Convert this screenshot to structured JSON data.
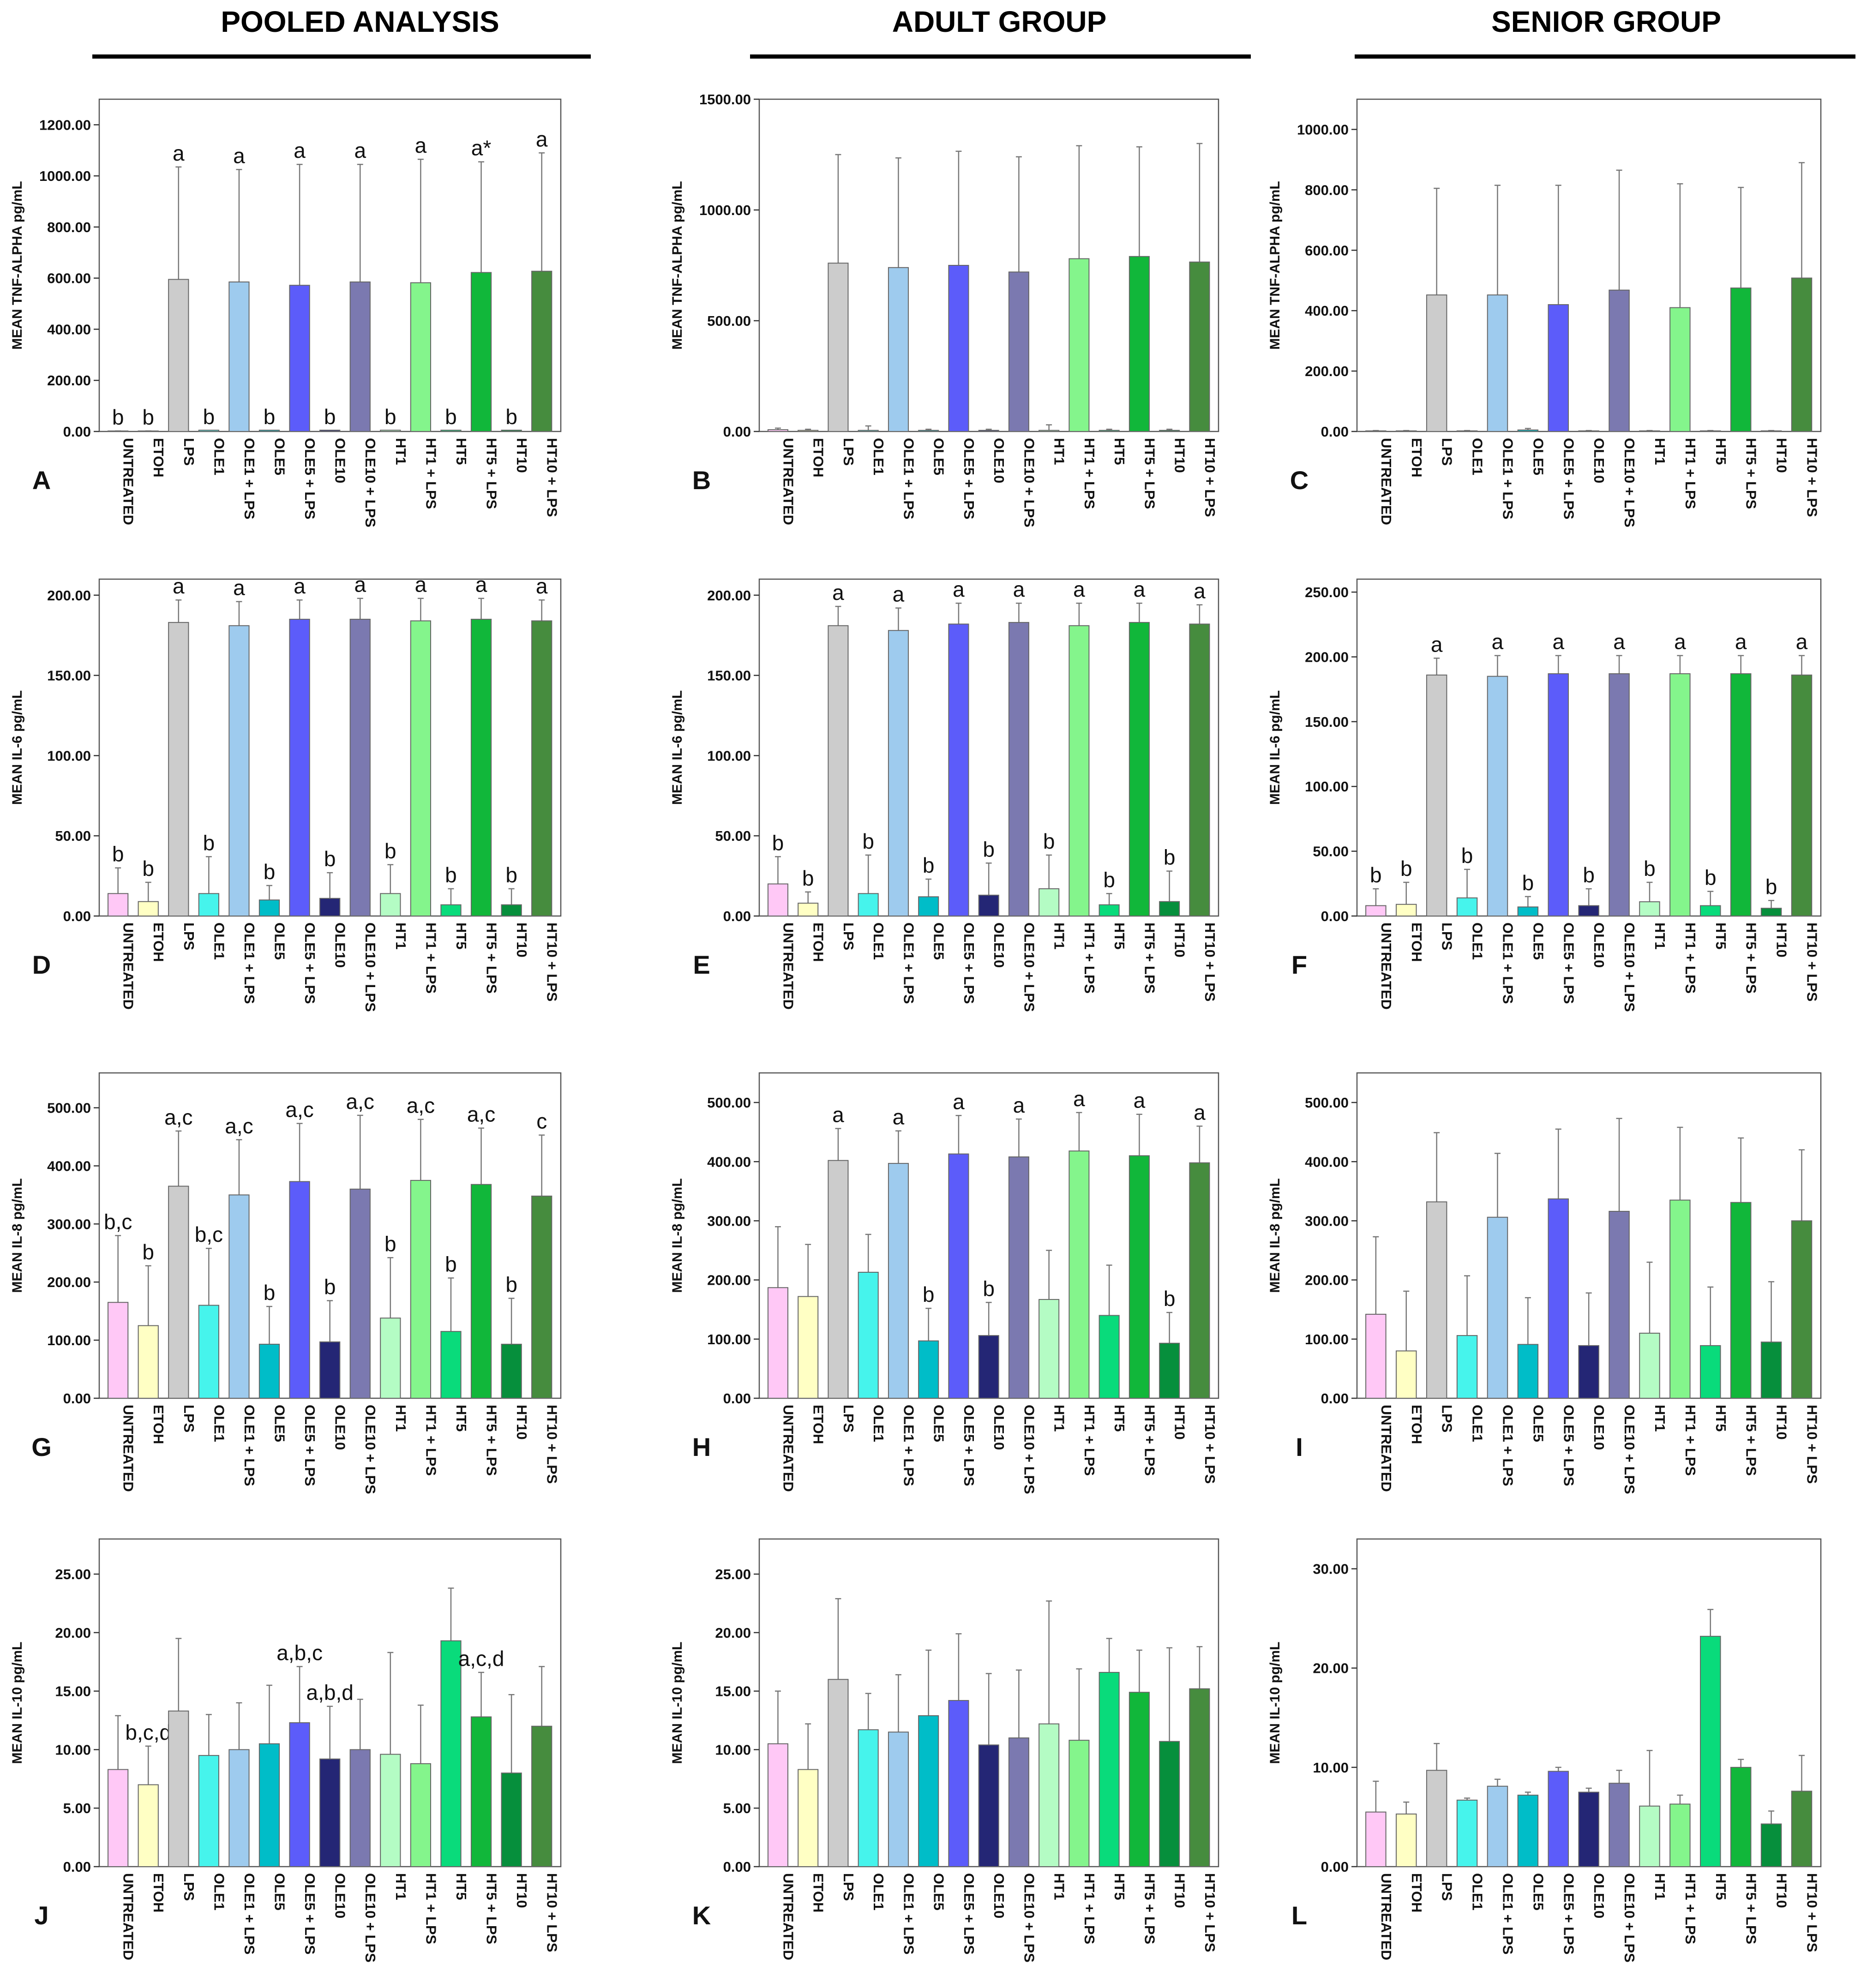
{
  "headers": {
    "pooled": "POOLED ANALYSIS",
    "adult": "ADULT GROUP",
    "senior": "SENIOR GROUP"
  },
  "categories": [
    "UNTREATED",
    "ETOH",
    "LPS",
    "OLE1",
    "OLE1 + LPS",
    "OLE5",
    "OLE5 + LPS",
    "OLE10",
    "OLE10 + LPS",
    "HT1",
    "HT1 + LPS",
    "HT5",
    "HT5 + LPS",
    "HT10",
    "HT10 + LPS"
  ],
  "colors": {
    "untreated": "#ffc8f6",
    "etoh": "#ffffc4",
    "lps": "#cccccc",
    "ole1": "#46f4ec",
    "ole1_lps": "#9ecbee",
    "ole5": "#00bdc8",
    "ole5_lps": "#5c5cfa",
    "ole10": "#242675",
    "ole10_lps": "#7b79b0",
    "ht1": "#b4fcc4",
    "ht1_lps": "#84f58c",
    "ht5": "#09db7b",
    "ht5_lps": "#11b73a",
    "ht10": "#068f3c",
    "ht10_lps": "#468c3e"
  },
  "chart_data": [
    {
      "type": "bar",
      "panel": "A",
      "ylabel": "MEAN TNF-ALPHA pg/mL",
      "ylim": [
        0,
        1300
      ],
      "ticks": [
        0,
        200,
        400,
        600,
        800,
        1000,
        1200
      ],
      "values": [
        2,
        2,
        595,
        5,
        585,
        5,
        572,
        5,
        585,
        5,
        582,
        5,
        622,
        5,
        627
      ],
      "err": [
        2,
        2,
        1035,
        4,
        1025,
        4,
        1045,
        4,
        1045,
        4,
        1065,
        4,
        1055,
        4,
        1090
      ],
      "labels": [
        "b",
        "b",
        "a",
        "b",
        "a",
        "b",
        "a",
        "b",
        "a",
        "b",
        "a",
        "b",
        "a*",
        "b",
        "a"
      ]
    },
    {
      "type": "bar",
      "panel": "B",
      "ylabel": "MEAN TNF-ALPHA pg/mL",
      "ylim": [
        0,
        1500
      ],
      "ticks": [
        0,
        500,
        1000,
        1500
      ],
      "values": [
        8,
        5,
        760,
        5,
        740,
        5,
        750,
        5,
        720,
        5,
        780,
        5,
        790,
        5,
        765
      ],
      "err": [
        15,
        10,
        1250,
        25,
        1235,
        10,
        1265,
        10,
        1240,
        30,
        1290,
        10,
        1285,
        10,
        1300
      ],
      "labels": [
        "",
        "",
        "",
        "",
        "",
        "",
        "",
        "",
        "",
        "",
        "",
        "",
        "",
        "",
        ""
      ]
    },
    {
      "type": "bar",
      "panel": "C",
      "ylabel": "MEAN TNF-ALPHA pg/mL",
      "ylim": [
        0,
        1100
      ],
      "ticks": [
        0,
        200,
        400,
        600,
        800,
        1000
      ],
      "values": [
        2,
        2,
        452,
        2,
        452,
        5,
        420,
        2,
        468,
        2,
        410,
        2,
        475,
        2,
        508
      ],
      "err": [
        3,
        3,
        805,
        3,
        815,
        10,
        815,
        3,
        865,
        3,
        820,
        3,
        808,
        3,
        890
      ],
      "labels": [
        "",
        "",
        "",
        "",
        "",
        "",
        "",
        "",
        "",
        "",
        "",
        "",
        "",
        "",
        ""
      ]
    },
    {
      "type": "bar",
      "panel": "D",
      "ylabel": "MEAN IL-6 pg/mL",
      "ylim": [
        0,
        210
      ],
      "ticks": [
        0,
        50,
        100,
        150,
        200
      ],
      "values": [
        14,
        9,
        183,
        14,
        181,
        10,
        185,
        11,
        185,
        14,
        184,
        7,
        185,
        7,
        184
      ],
      "err": [
        30,
        21,
        197,
        37,
        196,
        19,
        197,
        27,
        198,
        32,
        198,
        17,
        198,
        17,
        197
      ],
      "labels": [
        "b",
        "b",
        "a",
        "b",
        "a",
        "b",
        "a",
        "b",
        "a",
        "b",
        "a",
        "b",
        "a",
        "b",
        "a"
      ]
    },
    {
      "type": "bar",
      "panel": "E",
      "ylabel": "MEAN IL-6 pg/mL",
      "ylim": [
        0,
        210
      ],
      "ticks": [
        0,
        50,
        100,
        150,
        200
      ],
      "values": [
        20,
        8,
        181,
        14,
        178,
        12,
        182,
        13,
        183,
        17,
        181,
        7,
        183,
        9,
        182
      ],
      "err": [
        37,
        15,
        193,
        38,
        192,
        23,
        195,
        33,
        195,
        38,
        195,
        14,
        195,
        28,
        194
      ],
      "labels": [
        "b",
        "b",
        "a",
        "b",
        "a",
        "b",
        "a",
        "b",
        "a",
        "b",
        "a",
        "b",
        "a",
        "b",
        "a"
      ]
    },
    {
      "type": "bar",
      "panel": "F",
      "ylabel": "MEAN IL-6 pg/mL",
      "ylim": [
        0,
        260
      ],
      "ticks": [
        0,
        50,
        100,
        150,
        200,
        250
      ],
      "values": [
        8,
        9,
        186,
        14,
        185,
        7,
        187,
        8,
        187,
        11,
        187,
        8,
        187,
        6,
        186
      ],
      "err": [
        21,
        26,
        199,
        36,
        201,
        15,
        201,
        21,
        201,
        26,
        201,
        19,
        201,
        12,
        201
      ],
      "labels": [
        "b",
        "b",
        "a",
        "b",
        "a",
        "b",
        "a",
        "b",
        "a",
        "b",
        "a",
        "b",
        "a",
        "b",
        "a"
      ]
    },
    {
      "type": "bar",
      "panel": "G",
      "ylabel": "MEAN IL-8 pg/mL",
      "ylim": [
        0,
        560
      ],
      "ticks": [
        0,
        100,
        200,
        300,
        400,
        500
      ],
      "values": [
        165,
        125,
        365,
        160,
        350,
        93,
        373,
        97,
        360,
        138,
        375,
        115,
        368,
        93,
        348
      ],
      "err": [
        280,
        228,
        460,
        258,
        445,
        158,
        473,
        168,
        487,
        242,
        480,
        207,
        465,
        172,
        453
      ],
      "labels": [
        "b,c",
        "b",
        "a,c",
        "b,c",
        "a,c",
        "b",
        "a,c",
        "b",
        "a,c",
        "b",
        "a,c",
        "b",
        "a,c",
        "b",
        "c"
      ]
    },
    {
      "type": "bar",
      "panel": "H",
      "ylabel": "MEAN IL-8 pg/mL",
      "ylim": [
        0,
        550
      ],
      "ticks": [
        0,
        100,
        200,
        300,
        400,
        500
      ],
      "values": [
        187,
        172,
        402,
        213,
        397,
        97,
        413,
        106,
        408,
        167,
        418,
        140,
        410,
        93,
        398
      ],
      "err": [
        290,
        260,
        456,
        277,
        452,
        152,
        478,
        162,
        472,
        250,
        483,
        225,
        480,
        145,
        460
      ],
      "labels": [
        "",
        "",
        "a",
        "",
        "a",
        "b",
        "a",
        "b",
        "a",
        "",
        "a",
        "",
        "a",
        "b",
        "a"
      ]
    },
    {
      "type": "bar",
      "panel": "I",
      "ylabel": "MEAN IL-8 pg/mL",
      "ylim": [
        0,
        550
      ],
      "ticks": [
        0,
        100,
        200,
        300,
        400,
        500
      ],
      "values": [
        142,
        80,
        332,
        106,
        306,
        91,
        337,
        89,
        316,
        110,
        335,
        89,
        331,
        95,
        300
      ],
      "err": [
        273,
        181,
        449,
        207,
        414,
        170,
        455,
        178,
        473,
        230,
        458,
        188,
        440,
        197,
        420
      ],
      "labels": [
        "",
        "",
        "",
        "",
        "",
        "",
        "",
        "",
        "",
        "",
        "",
        "",
        "",
        "",
        ""
      ]
    },
    {
      "type": "bar",
      "panel": "J",
      "ylabel": "MEAN IL-10 pg/mL",
      "ylim": [
        0,
        28
      ],
      "ticks": [
        0,
        5,
        10,
        15,
        20,
        25
      ],
      "values": [
        8.3,
        7.0,
        13.3,
        9.5,
        10.0,
        10.5,
        12.3,
        9.2,
        10.0,
        9.6,
        8.8,
        19.3,
        12.8,
        8.0,
        12.0
      ],
      "err": [
        12.9,
        10.3,
        19.5,
        13.0,
        14.0,
        15.5,
        17.1,
        13.7,
        14.3,
        18.3,
        13.8,
        23.8,
        16.6,
        14.7,
        17.1
      ],
      "labels": [
        "",
        "b,c,d",
        "",
        "",
        "",
        "",
        "a,b,c",
        "a,b,d",
        "",
        "",
        "",
        "",
        "a,c,d",
        "",
        ""
      ]
    },
    {
      "type": "bar",
      "panel": "K",
      "ylabel": "MEAN IL-10 pg/mL",
      "ylim": [
        0,
        28
      ],
      "ticks": [
        0,
        5,
        10,
        15,
        20,
        25
      ],
      "values": [
        10.5,
        8.3,
        16.0,
        11.7,
        11.5,
        12.9,
        14.2,
        10.4,
        11.0,
        12.2,
        10.8,
        16.6,
        14.9,
        10.7,
        15.2
      ],
      "err": [
        15.0,
        12.2,
        22.9,
        14.8,
        16.4,
        18.5,
        19.9,
        16.5,
        16.8,
        22.7,
        16.9,
        19.5,
        18.5,
        18.7,
        18.8
      ],
      "labels": [
        "",
        "",
        "",
        "",
        "",
        "",
        "",
        "",
        "",
        "",
        "",
        "",
        "",
        "",
        ""
      ]
    },
    {
      "type": "bar",
      "panel": "L",
      "ylabel": "MEAN IL-10 pg/mL",
      "ylim": [
        0,
        33
      ],
      "ticks": [
        0,
        10,
        20,
        30
      ],
      "values": [
        5.5,
        5.3,
        9.7,
        6.7,
        8.1,
        7.2,
        9.6,
        7.5,
        8.4,
        6.1,
        6.3,
        23.2,
        10.0,
        4.3,
        7.6
      ],
      "err": [
        8.6,
        6.5,
        12.4,
        6.9,
        8.8,
        7.5,
        10.0,
        7.9,
        9.7,
        11.7,
        7.2,
        25.9,
        10.8,
        5.6,
        11.2
      ],
      "labels": [
        "",
        "",
        "",
        "",
        "",
        "",
        "",
        "",
        "",
        "",
        "",
        "",
        "",
        "",
        ""
      ]
    }
  ]
}
